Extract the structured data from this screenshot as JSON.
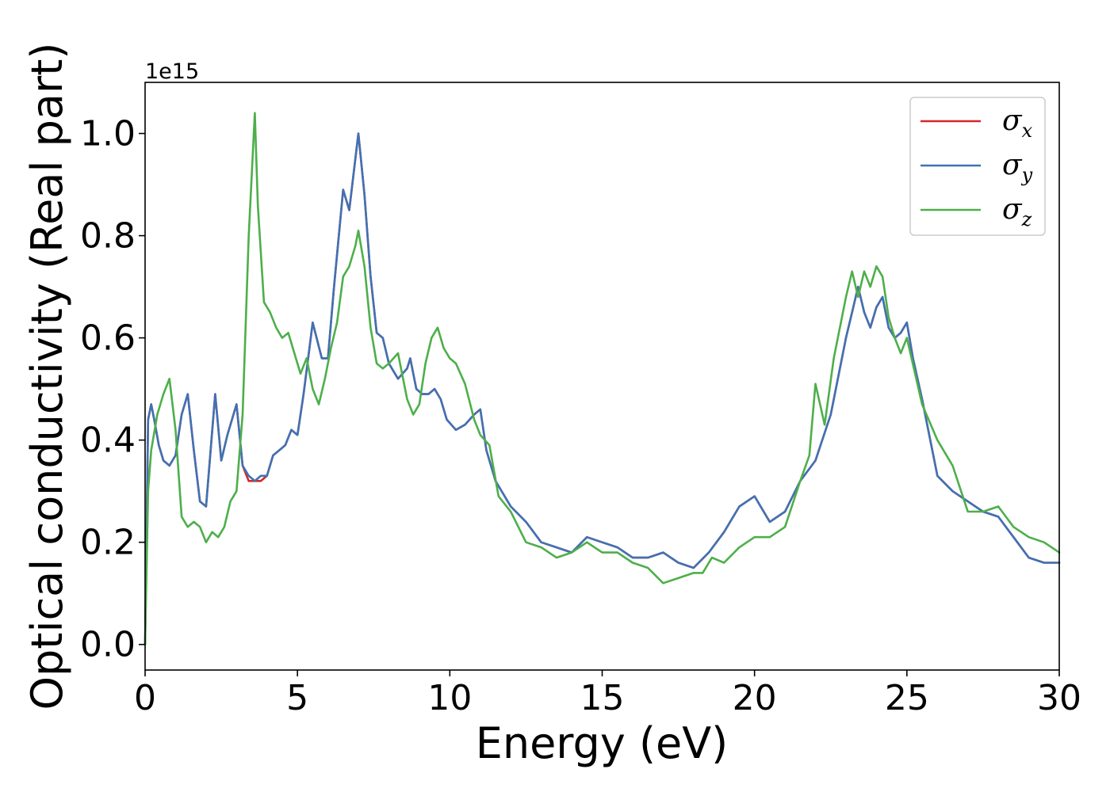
{
  "chart_data": {
    "type": "line",
    "title": "",
    "xlabel": "Energy (eV)",
    "ylabel": "Optical conductivity (Real part)",
    "y_offset_label": "1e15",
    "xlim": [
      0,
      30
    ],
    "ylim": [
      -0.05,
      1.1
    ],
    "xticks": [
      0,
      5,
      10,
      15,
      20,
      25,
      30
    ],
    "xtick_labels": [
      "0",
      "5",
      "10",
      "15",
      "20",
      "25",
      "30"
    ],
    "yticks": [
      0.0,
      0.2,
      0.4,
      0.6,
      0.8,
      1.0
    ],
    "ytick_labels": [
      "0.0",
      "0.2",
      "0.4",
      "0.6",
      "0.8",
      "1.0"
    ],
    "grid": false,
    "legend_position": "top-right",
    "series": [
      {
        "name": "σx",
        "symbol": "σ",
        "subscript": "x",
        "color": "#d62728",
        "x": [
          0,
          0.1,
          0.2,
          0.3,
          0.45,
          0.6,
          0.8,
          1.0,
          1.2,
          1.4,
          1.6,
          1.8,
          2.0,
          2.3,
          2.5,
          2.7,
          3.0,
          3.2,
          3.4,
          3.6,
          3.8,
          4.0,
          4.2,
          4.4,
          4.6,
          4.8,
          5.0,
          5.2,
          5.5,
          5.8,
          6.0,
          6.2,
          6.5,
          6.7,
          7.0,
          7.2,
          7.4,
          7.6,
          7.8,
          8.0,
          8.3,
          8.6,
          8.7,
          8.9,
          9.1,
          9.3,
          9.5,
          9.7,
          9.9,
          10.2,
          10.5,
          10.8,
          11.0,
          11.2,
          11.5,
          12.0,
          12.5,
          13.0,
          13.5,
          14.0,
          14.5,
          15.0,
          15.5,
          16.0,
          16.5,
          17.0,
          17.5,
          18.0,
          18.5,
          19.0,
          19.5,
          20.0,
          20.5,
          21.0,
          21.5,
          22.0,
          22.5,
          23.0,
          23.2,
          23.4,
          23.6,
          23.8,
          24.0,
          24.2,
          24.4,
          24.6,
          24.8,
          25.0,
          25.2,
          25.5,
          26.0,
          26.5,
          27.0,
          27.5,
          28.0,
          28.5,
          29.0,
          29.5,
          30.0
        ],
        "y": [
          0.0,
          0.44,
          0.47,
          0.44,
          0.39,
          0.36,
          0.35,
          0.37,
          0.45,
          0.49,
          0.38,
          0.28,
          0.27,
          0.49,
          0.36,
          0.41,
          0.47,
          0.35,
          0.32,
          0.32,
          0.32,
          0.33,
          0.37,
          0.38,
          0.39,
          0.42,
          0.41,
          0.49,
          0.63,
          0.56,
          0.56,
          0.7,
          0.89,
          0.85,
          1.0,
          0.88,
          0.72,
          0.61,
          0.6,
          0.55,
          0.52,
          0.54,
          0.56,
          0.5,
          0.49,
          0.49,
          0.5,
          0.48,
          0.44,
          0.42,
          0.43,
          0.45,
          0.46,
          0.38,
          0.32,
          0.27,
          0.24,
          0.2,
          0.19,
          0.18,
          0.21,
          0.2,
          0.19,
          0.17,
          0.17,
          0.18,
          0.16,
          0.15,
          0.18,
          0.22,
          0.27,
          0.29,
          0.24,
          0.26,
          0.32,
          0.36,
          0.45,
          0.6,
          0.65,
          0.7,
          0.65,
          0.62,
          0.66,
          0.68,
          0.62,
          0.6,
          0.61,
          0.63,
          0.56,
          0.48,
          0.33,
          0.3,
          0.28,
          0.26,
          0.25,
          0.21,
          0.17,
          0.16,
          0.16
        ]
      },
      {
        "name": "σy",
        "symbol": "σ",
        "subscript": "y",
        "color": "#3f72b4",
        "x": [
          0,
          0.1,
          0.2,
          0.3,
          0.45,
          0.6,
          0.8,
          1.0,
          1.2,
          1.4,
          1.6,
          1.8,
          2.0,
          2.3,
          2.5,
          2.7,
          3.0,
          3.2,
          3.4,
          3.6,
          3.8,
          4.0,
          4.2,
          4.4,
          4.6,
          4.8,
          5.0,
          5.2,
          5.5,
          5.8,
          6.0,
          6.2,
          6.5,
          6.7,
          7.0,
          7.2,
          7.4,
          7.6,
          7.8,
          8.0,
          8.3,
          8.6,
          8.7,
          8.9,
          9.1,
          9.3,
          9.5,
          9.7,
          9.9,
          10.2,
          10.5,
          10.8,
          11.0,
          11.2,
          11.5,
          12.0,
          12.5,
          13.0,
          13.5,
          14.0,
          14.5,
          15.0,
          15.5,
          16.0,
          16.5,
          17.0,
          17.5,
          18.0,
          18.5,
          19.0,
          19.5,
          20.0,
          20.5,
          21.0,
          21.5,
          22.0,
          22.5,
          23.0,
          23.2,
          23.4,
          23.6,
          23.8,
          24.0,
          24.2,
          24.4,
          24.6,
          24.8,
          25.0,
          25.2,
          25.5,
          26.0,
          26.5,
          27.0,
          27.5,
          28.0,
          28.5,
          29.0,
          29.5,
          30.0
        ],
        "y": [
          0.0,
          0.44,
          0.47,
          0.44,
          0.39,
          0.36,
          0.35,
          0.37,
          0.45,
          0.49,
          0.38,
          0.28,
          0.27,
          0.49,
          0.36,
          0.41,
          0.47,
          0.35,
          0.33,
          0.32,
          0.33,
          0.33,
          0.37,
          0.38,
          0.39,
          0.42,
          0.41,
          0.49,
          0.63,
          0.56,
          0.56,
          0.7,
          0.89,
          0.85,
          1.0,
          0.88,
          0.72,
          0.61,
          0.6,
          0.55,
          0.52,
          0.54,
          0.56,
          0.5,
          0.49,
          0.49,
          0.5,
          0.48,
          0.44,
          0.42,
          0.43,
          0.45,
          0.46,
          0.38,
          0.32,
          0.27,
          0.24,
          0.2,
          0.19,
          0.18,
          0.21,
          0.2,
          0.19,
          0.17,
          0.17,
          0.18,
          0.16,
          0.15,
          0.18,
          0.22,
          0.27,
          0.29,
          0.24,
          0.26,
          0.32,
          0.36,
          0.45,
          0.6,
          0.65,
          0.7,
          0.65,
          0.62,
          0.66,
          0.68,
          0.62,
          0.6,
          0.61,
          0.63,
          0.56,
          0.48,
          0.33,
          0.3,
          0.28,
          0.26,
          0.25,
          0.21,
          0.17,
          0.16,
          0.16
        ]
      },
      {
        "name": "σz",
        "symbol": "σ",
        "subscript": "z",
        "color": "#4daf4a",
        "x": [
          0,
          0.1,
          0.2,
          0.4,
          0.6,
          0.8,
          1.0,
          1.2,
          1.4,
          1.6,
          1.8,
          2.0,
          2.2,
          2.4,
          2.6,
          2.8,
          3.0,
          3.2,
          3.4,
          3.6,
          3.7,
          3.9,
          4.1,
          4.3,
          4.5,
          4.7,
          4.9,
          5.1,
          5.3,
          5.5,
          5.7,
          5.9,
          6.1,
          6.3,
          6.5,
          6.7,
          6.9,
          7.0,
          7.2,
          7.4,
          7.6,
          7.8,
          8.0,
          8.3,
          8.6,
          8.8,
          9.0,
          9.2,
          9.4,
          9.6,
          9.8,
          10.0,
          10.2,
          10.5,
          10.8,
          11.0,
          11.3,
          11.6,
          12.0,
          12.5,
          13.0,
          13.5,
          14.0,
          14.5,
          15.0,
          15.5,
          16.0,
          16.5,
          17.0,
          17.5,
          18.0,
          18.3,
          18.6,
          19.0,
          19.5,
          20.0,
          20.5,
          21.0,
          21.5,
          21.8,
          22.0,
          22.3,
          22.6,
          23.0,
          23.2,
          23.4,
          23.6,
          23.8,
          24.0,
          24.2,
          24.4,
          24.6,
          24.8,
          25.0,
          25.5,
          26.0,
          26.5,
          27.0,
          27.5,
          28.0,
          28.5,
          29.0,
          29.5,
          30.0
        ],
        "y": [
          0.0,
          0.3,
          0.38,
          0.45,
          0.49,
          0.52,
          0.42,
          0.25,
          0.23,
          0.24,
          0.23,
          0.2,
          0.22,
          0.21,
          0.23,
          0.28,
          0.3,
          0.45,
          0.8,
          1.04,
          0.86,
          0.67,
          0.65,
          0.62,
          0.6,
          0.61,
          0.57,
          0.53,
          0.56,
          0.5,
          0.47,
          0.52,
          0.58,
          0.63,
          0.72,
          0.74,
          0.78,
          0.81,
          0.74,
          0.62,
          0.55,
          0.54,
          0.55,
          0.57,
          0.48,
          0.45,
          0.47,
          0.55,
          0.6,
          0.62,
          0.58,
          0.56,
          0.55,
          0.51,
          0.44,
          0.41,
          0.39,
          0.29,
          0.26,
          0.2,
          0.19,
          0.17,
          0.18,
          0.2,
          0.18,
          0.18,
          0.16,
          0.15,
          0.12,
          0.13,
          0.14,
          0.14,
          0.17,
          0.16,
          0.19,
          0.21,
          0.21,
          0.23,
          0.32,
          0.37,
          0.51,
          0.43,
          0.56,
          0.68,
          0.73,
          0.68,
          0.73,
          0.7,
          0.74,
          0.72,
          0.64,
          0.6,
          0.57,
          0.6,
          0.47,
          0.4,
          0.35,
          0.26,
          0.26,
          0.27,
          0.23,
          0.21,
          0.2,
          0.18
        ]
      }
    ]
  }
}
